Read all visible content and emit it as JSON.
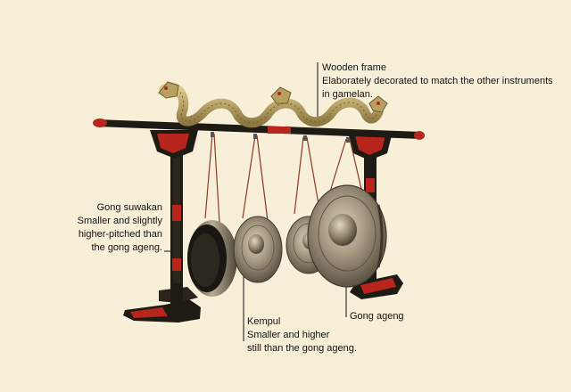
{
  "callouts": {
    "wooden_frame": {
      "title": "Wooden frame",
      "lines": [
        "Elaborately decorated to match the other instruments",
        "in gamelan."
      ]
    },
    "gong_suwakan": {
      "title": "Gong suwakan",
      "lines": [
        "Smaller and slightly",
        "higher-pitched than",
        "the gong ageng."
      ]
    },
    "kempul": {
      "title": "Kempul",
      "lines": [
        "Smaller and higher",
        "still than the gong ageng."
      ]
    },
    "gong_ageng": {
      "title": "Gong ageng",
      "lines": []
    }
  },
  "colors": {
    "background": "#f8efd9",
    "frame_wood": "#1e1a14",
    "frame_red": "#b8251c",
    "dragon_gold": "#b8a060",
    "bronze": "#9a8f78",
    "bronze_dark": "#3e372c",
    "cord": "#8a3b2a"
  }
}
